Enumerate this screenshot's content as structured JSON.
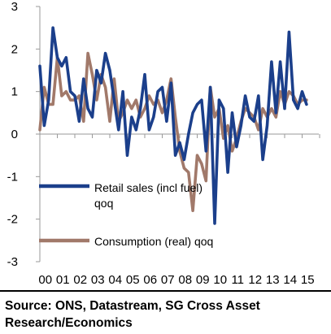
{
  "chart_data": {
    "type": "line",
    "ylim": [
      -3,
      3
    ],
    "yticks": [
      3,
      2,
      1,
      0,
      -1,
      -2,
      -3
    ],
    "xticks": [
      "00",
      "01",
      "02",
      "03",
      "04",
      "05",
      "06",
      "07",
      "08",
      "09",
      "10",
      "11",
      "12",
      "13",
      "14",
      "15"
    ],
    "xlim": [
      2000,
      2016
    ],
    "legend_position": "lower-left",
    "series": [
      {
        "name": "Retail sales (incl fuel) qoq",
        "color": "#1b3f8b",
        "x": [
          2000.0,
          2000.25,
          2000.5,
          2000.75,
          2001.0,
          2001.25,
          2001.5,
          2001.75,
          2002.0,
          2002.25,
          2002.5,
          2002.75,
          2003.0,
          2003.25,
          2003.5,
          2003.75,
          2004.0,
          2004.25,
          2004.5,
          2004.75,
          2005.0,
          2005.25,
          2005.5,
          2005.75,
          2006.0,
          2006.25,
          2006.5,
          2006.75,
          2007.0,
          2007.25,
          2007.5,
          2007.75,
          2008.0,
          2008.25,
          2008.5,
          2008.75,
          2009.0,
          2009.25,
          2009.5,
          2009.75,
          2010.0,
          2010.25,
          2010.5,
          2010.75,
          2011.0,
          2011.25,
          2011.5,
          2011.75,
          2012.0,
          2012.25,
          2012.5,
          2012.75,
          2013.0,
          2013.25,
          2013.5,
          2013.75,
          2014.0,
          2014.25,
          2014.5,
          2014.75,
          2015.0,
          2015.25
        ],
        "y": [
          1.6,
          0.2,
          0.8,
          2.5,
          1.8,
          1.6,
          1.8,
          1.0,
          0.9,
          0.3,
          1.3,
          0.6,
          0.4,
          1.5,
          1.2,
          1.9,
          1.5,
          0.8,
          0.1,
          1.0,
          -0.5,
          0.4,
          0.1,
          0.6,
          1.4,
          0.1,
          0.4,
          1.0,
          1.1,
          0.3,
          1.2,
          -0.5,
          -0.2,
          -0.6,
          0.0,
          0.5,
          0.7,
          0.8,
          -0.4,
          1.1,
          -2.1,
          0.8,
          0.6,
          -0.9,
          0.5,
          -0.3,
          0.2,
          0.9,
          0.4,
          0.3,
          0.9,
          -0.6,
          0.2,
          1.7,
          0.5,
          1.7,
          0.6,
          2.4,
          0.8,
          0.6,
          1.0,
          0.7
        ]
      },
      {
        "name": "Consumption (real) qoq",
        "color": "#a1796a",
        "x": [
          2000.0,
          2000.25,
          2000.5,
          2000.75,
          2001.0,
          2001.25,
          2001.5,
          2001.75,
          2002.0,
          2002.25,
          2002.5,
          2002.75,
          2003.0,
          2003.25,
          2003.5,
          2003.75,
          2004.0,
          2004.25,
          2004.5,
          2004.75,
          2005.0,
          2005.25,
          2005.5,
          2005.75,
          2006.0,
          2006.25,
          2006.5,
          2006.75,
          2007.0,
          2007.25,
          2007.5,
          2007.75,
          2008.0,
          2008.25,
          2008.5,
          2008.75,
          2009.0,
          2009.25,
          2009.5,
          2009.75,
          2010.0,
          2010.25,
          2010.5,
          2010.75,
          2011.0,
          2011.25,
          2011.5,
          2011.75,
          2012.0,
          2012.25,
          2012.5,
          2012.75,
          2013.0,
          2013.25,
          2013.5,
          2013.75,
          2014.0,
          2014.25,
          2014.5,
          2014.75,
          2015.0,
          2015.25
        ],
        "y": [
          0.1,
          1.1,
          0.7,
          0.7,
          1.8,
          0.9,
          1.0,
          0.8,
          0.8,
          0.9,
          0.3,
          1.9,
          1.4,
          0.8,
          1.4,
          1.1,
          0.3,
          1.3,
          0.3,
          0.5,
          0.8,
          0.6,
          0.8,
          0.4,
          0.6,
          0.9,
          0.7,
          0.8,
          0.5,
          0.8,
          1.3,
          0.4,
          -0.4,
          -0.8,
          -0.9,
          -1.8,
          -0.5,
          -0.7,
          -1.1,
          1.1,
          0.4,
          0.6,
          -0.1,
          0.2,
          -0.4,
          -0.1,
          0.3,
          0.6,
          0.5,
          0.4,
          0.1,
          0.6,
          0.4,
          0.6,
          0.4,
          1.0,
          0.7,
          1.0,
          0.9,
          0.7,
          0.8,
          0.8
        ]
      }
    ]
  },
  "source_text": "Source: ONS, Datastream, SG Cross Asset Research/Economics"
}
